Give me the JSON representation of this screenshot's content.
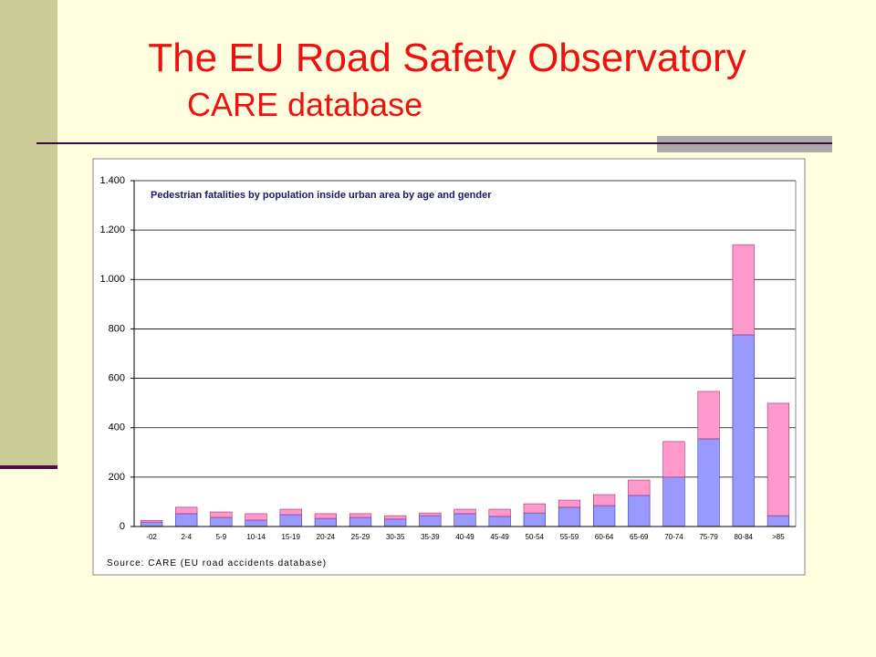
{
  "slide": {
    "title": "The EU Road Safety Observatory",
    "subtitle": "CARE database"
  },
  "chart_data": {
    "type": "stacked-bar",
    "title": "Pedestrian fatalities by population inside urban area by age and gender",
    "source": "Source: CARE (EU road accidents database)",
    "categories": [
      "-02",
      "2-4",
      "5-9",
      "10-14",
      "15-19",
      "20-24",
      "25-29",
      "30-35",
      "35-39",
      "40-49",
      "45-49",
      "50-54",
      "55-59",
      "60-64",
      "65-69",
      "70-74",
      "75-79",
      "80-84",
      ">85"
    ],
    "series": [
      {
        "color": "#9999ff",
        "values": [
          18,
          52,
          37,
          26,
          48,
          33,
          37,
          30,
          44,
          52,
          41,
          55,
          78,
          85,
          126,
          200,
          355,
          776,
          44
        ]
      },
      {
        "color": "#ff99cc",
        "values": [
          7,
          26,
          22,
          26,
          22,
          19,
          15,
          14,
          11,
          18,
          29,
          37,
          29,
          44,
          62,
          144,
          192,
          365,
          455
        ]
      }
    ],
    "ylim": [
      0,
      1400
    ],
    "yticks": [
      0,
      200,
      400,
      600,
      800,
      {
        "value": 1000,
        "label": "1.000"
      },
      {
        "value": 1200,
        "label": "1.200"
      },
      {
        "value": 1400,
        "label": "1.400"
      }
    ],
    "grid": true
  }
}
